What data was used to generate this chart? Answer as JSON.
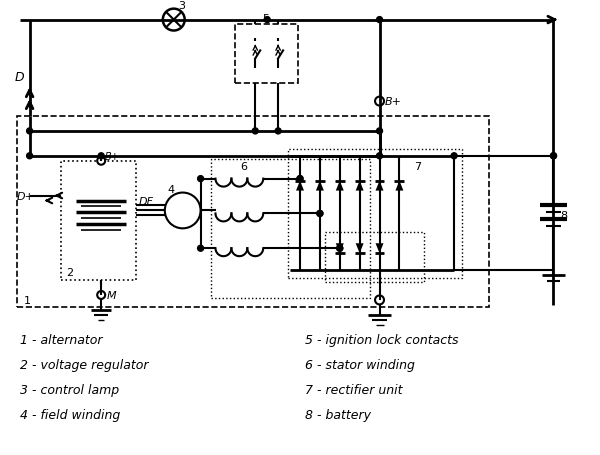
{
  "background_color": "#ffffff",
  "legend_col1": [
    "1 - alternator",
    "2 - voltage regulator",
    "3 - control lamp",
    "4 - field winding"
  ],
  "legend_col2": [
    "5 - ignition lock contacts",
    "6 - stator winding",
    "7 - rectifier unit",
    "8 - battery"
  ]
}
